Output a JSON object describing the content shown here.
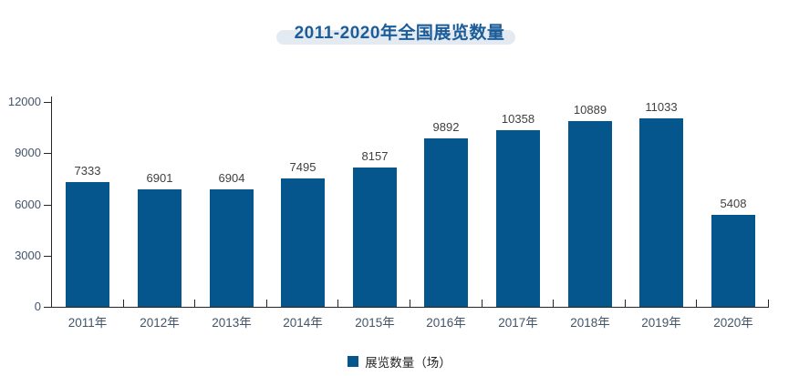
{
  "title": {
    "text": "2011-2020年全国展览数量"
  },
  "legend": {
    "items": [
      {
        "label": "展览数量（场）",
        "color": "#05568C"
      }
    ]
  },
  "colors": {
    "bar": "#05568C",
    "title_text": "#1C5D99",
    "title_pill": "#E4EAF2",
    "axis": "#262626",
    "tick_label": "#44546A",
    "data_label": "#404040"
  },
  "chart_data": {
    "type": "bar",
    "title": "2011-2020年全国展览数量",
    "categories": [
      "2011年",
      "2012年",
      "2013年",
      "2014年",
      "2015年",
      "2016年",
      "2017年",
      "2018年",
      "2019年",
      "2020年"
    ],
    "values": [
      7333,
      6901,
      6904,
      7495,
      8157,
      9892,
      10358,
      10889,
      11033,
      5408
    ],
    "series_name": "展览数量（场）",
    "xlabel": "",
    "ylabel": "",
    "ylim": [
      0,
      12000
    ],
    "yticks": [
      0,
      3000,
      6000,
      9000,
      12000
    ],
    "grid": false,
    "data_labels": true,
    "legend_position": "bottom"
  }
}
